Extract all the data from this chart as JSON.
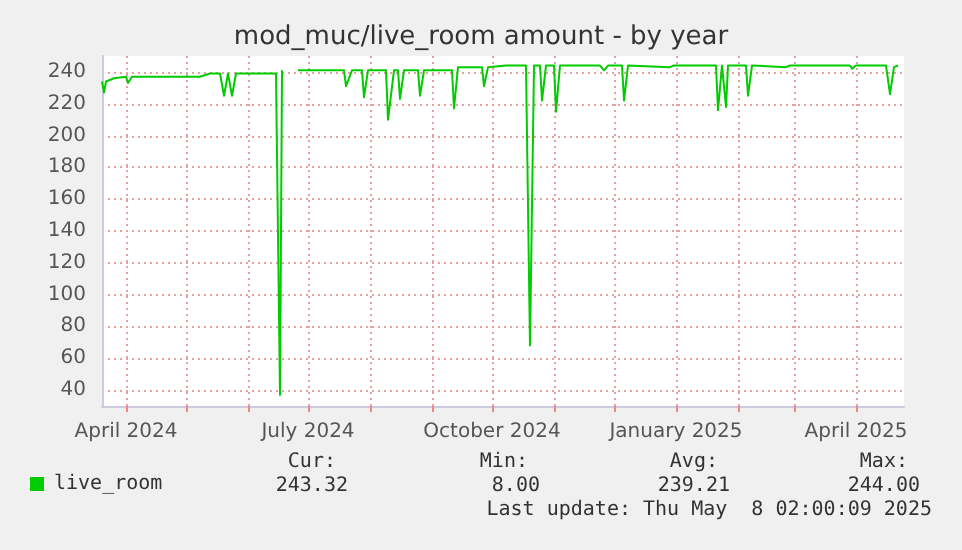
{
  "chart_data": {
    "type": "line",
    "title": "mod_muc/live_room amount - by year",
    "x": [
      "2024-03-20",
      "2024-03-21",
      "2024-03-22",
      "2024-03-26",
      "2024-04-01",
      "2024-04-02",
      "2024-04-04",
      "2024-05-08",
      "2024-05-13",
      "2024-05-18",
      "2024-05-20",
      "2024-05-22",
      "2024-05-24",
      "2024-05-26",
      "2024-06-15",
      "2024-06-17",
      "2024-06-18",
      "2024-06-20",
      "2024-06-26",
      "2024-07-14",
      "2024-07-19",
      "2024-07-20",
      "2024-07-23",
      "2024-07-28",
      "2024-07-29",
      "2024-07-31",
      "2024-08-09",
      "2024-08-10",
      "2024-08-13",
      "2024-08-15",
      "2024-08-16",
      "2024-08-18",
      "2024-08-25",
      "2024-08-26",
      "2024-08-28",
      "2024-09-08",
      "2024-09-11",
      "2024-09-12",
      "2024-09-14",
      "2024-09-26",
      "2024-09-27",
      "2024-09-29",
      "2024-10-08",
      "2024-10-18",
      "2024-10-20",
      "2024-10-22",
      "2024-10-25",
      "2024-10-26",
      "2024-10-28",
      "2024-11-01",
      "2024-11-02",
      "2024-11-04",
      "2024-11-24",
      "2024-11-26",
      "2024-11-28",
      "2024-12-05",
      "2024-12-06",
      "2024-12-08",
      "2024-12-29",
      "2024-12-31",
      "2025-01-21",
      "2025-01-22",
      "2025-01-24",
      "2025-01-26",
      "2025-01-27",
      "2025-02-05",
      "2025-02-06",
      "2025-02-08",
      "2025-02-25",
      "2025-02-27",
      "2025-03-29",
      "2025-03-30",
      "2025-04-01",
      "2025-04-16",
      "2025-04-18",
      "2025-04-20",
      "2025-04-22"
    ],
    "series": [
      {
        "name": "live_room",
        "color": "#00cc00",
        "values": [
          234,
          227,
          234,
          236,
          237,
          233,
          237,
          237,
          239,
          239,
          225,
          239,
          225,
          239,
          239,
          37,
          241,
          null,
          241,
          241,
          241,
          231,
          241,
          241,
          224,
          241,
          241,
          210,
          241,
          241,
          223,
          241,
          241,
          225,
          241,
          241,
          241,
          217,
          243,
          243,
          231,
          243,
          244,
          244,
          68,
          244,
          244,
          222,
          244,
          244,
          215,
          244,
          244,
          241,
          244,
          244,
          222,
          244,
          243,
          244,
          244,
          216,
          244,
          218,
          244,
          244,
          225,
          244,
          243,
          244,
          244,
          242,
          244,
          244,
          226,
          243,
          244
        ]
      }
    ],
    "xlim": [
      "2024-03-20",
      "2025-04-25"
    ],
    "xticks": [
      {
        "value": "2024-04-01",
        "label": "April 2024"
      },
      {
        "value": "2024-05-01",
        "label": null
      },
      {
        "value": "2024-06-01",
        "label": null
      },
      {
        "value": "2024-07-01",
        "label": "July 2024"
      },
      {
        "value": "2024-08-01",
        "label": null
      },
      {
        "value": "2024-09-01",
        "label": null
      },
      {
        "value": "2024-10-01",
        "label": "October 2024"
      },
      {
        "value": "2024-11-01",
        "label": null
      },
      {
        "value": "2024-12-01",
        "label": null
      },
      {
        "value": "2025-01-01",
        "label": "January 2025"
      },
      {
        "value": "2025-02-01",
        "label": null
      },
      {
        "value": "2025-03-01",
        "label": null
      },
      {
        "value": "2025-04-01",
        "label": "April 2025"
      }
    ],
    "ylim": [
      30,
      250
    ],
    "yticks": [
      40,
      60,
      80,
      100,
      120,
      140,
      160,
      180,
      200,
      220,
      240
    ],
    "grid": true,
    "legend": "bottom left",
    "marker": "none",
    "annotations": [
      "Cur:",
      "Min:",
      "Avg:",
      "Max:",
      "243.32",
      "8.00",
      "239.21",
      "244.00",
      "Last update: Thu May  8 02:00:09 2025"
    ]
  }
}
